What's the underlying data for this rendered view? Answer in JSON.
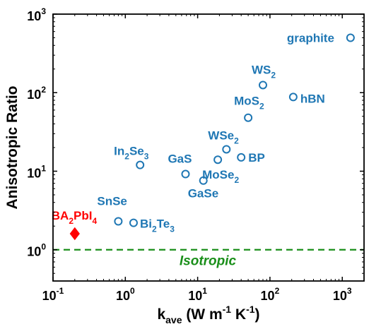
{
  "chart_data": {
    "type": "scatter",
    "xscale": "log",
    "yscale": "log",
    "xlim": [
      0.1,
      2000
    ],
    "ylim": [
      0.4,
      1000
    ],
    "grid": false,
    "x_ticks": [
      {
        "value": 0.1,
        "base": "10",
        "exp": "-1"
      },
      {
        "value": 1,
        "base": "10",
        "exp": "0"
      },
      {
        "value": 10,
        "base": "10",
        "exp": "1"
      },
      {
        "value": 100,
        "base": "10",
        "exp": "2"
      },
      {
        "value": 1000,
        "base": "10",
        "exp": "3"
      }
    ],
    "y_ticks": [
      {
        "value": 1,
        "base": "10",
        "exp": "0"
      },
      {
        "value": 10,
        "base": "10",
        "exp": "1"
      },
      {
        "value": 100,
        "base": "10",
        "exp": "2"
      },
      {
        "value": 1000,
        "base": "10",
        "exp": "3"
      }
    ],
    "xlabel": {
      "main": "k",
      "sub": "ave",
      "rest": " (W m",
      "sup1": "-1",
      "mid": " K",
      "sup2": "-1",
      "end": ")"
    },
    "ylabel": "Anisotropic Ratio",
    "colors": {
      "points": "#1f77b4",
      "highlight": "#ff0000",
      "isotropic": "#1a8f1a"
    },
    "isotropic_line": {
      "y": 1,
      "label": "Isotropic"
    },
    "points": [
      {
        "name": "graphite",
        "label_parts": [
          {
            "t": "graphite"
          }
        ],
        "x": 1300,
        "y": 500,
        "label_pos": "left"
      },
      {
        "name": "WS2",
        "label_parts": [
          {
            "t": "WS"
          },
          {
            "t": "2",
            "sub": true
          }
        ],
        "x": 80,
        "y": 125,
        "label_pos": "above"
      },
      {
        "name": "hBN",
        "label_parts": [
          {
            "t": "hBN"
          }
        ],
        "x": 210,
        "y": 88,
        "label_pos": "right"
      },
      {
        "name": "MoS2",
        "label_parts": [
          {
            "t": "MoS"
          },
          {
            "t": "2",
            "sub": true
          }
        ],
        "x": 50,
        "y": 48,
        "label_pos": "above"
      },
      {
        "name": "WSe2",
        "label_parts": [
          {
            "t": "WSe"
          },
          {
            "t": "2",
            "sub": true
          }
        ],
        "x": 25,
        "y": 19,
        "label_pos": "above"
      },
      {
        "name": "BP",
        "label_parts": [
          {
            "t": "BP"
          }
        ],
        "x": 40,
        "y": 15,
        "label_pos": "right"
      },
      {
        "name": "MoSe2",
        "label_parts": [
          {
            "t": "MoSe"
          },
          {
            "t": "2",
            "sub": true
          }
        ],
        "x": 19,
        "y": 14,
        "label_pos": "below"
      },
      {
        "name": "GaS",
        "label_parts": [
          {
            "t": "GaS"
          }
        ],
        "x": 6.8,
        "y": 9.2,
        "label_pos": "above"
      },
      {
        "name": "GaSe",
        "label_parts": [
          {
            "t": "GaSe"
          }
        ],
        "x": 12,
        "y": 7.6,
        "label_pos": "below"
      },
      {
        "name": "In2Se3",
        "label_parts": [
          {
            "t": "In"
          },
          {
            "t": "2",
            "sub": true
          },
          {
            "t": "Se"
          },
          {
            "t": "3",
            "sub": true
          }
        ],
        "x": 1.6,
        "y": 12,
        "label_pos": "above"
      },
      {
        "name": "SnSe",
        "label_parts": [
          {
            "t": "SnSe"
          }
        ],
        "x": 0.8,
        "y": 2.3,
        "label_pos": "above"
      },
      {
        "name": "Bi2Te3",
        "label_parts": [
          {
            "t": "Bi"
          },
          {
            "t": "2",
            "sub": true
          },
          {
            "t": "Te"
          },
          {
            "t": "3",
            "sub": true
          }
        ],
        "x": 1.3,
        "y": 2.2,
        "label_pos": "right"
      },
      {
        "name": "BA2PbI4",
        "label_parts": [
          {
            "t": "BA"
          },
          {
            "t": "2",
            "sub": true
          },
          {
            "t": "PbI"
          },
          {
            "t": "4",
            "sub": true
          }
        ],
        "x": 0.2,
        "y": 1.6,
        "label_pos": "above",
        "highlight": true
      }
    ]
  }
}
